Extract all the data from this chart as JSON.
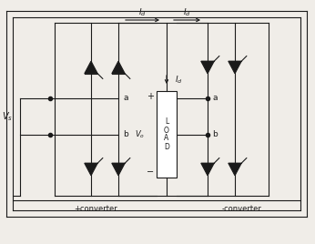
{
  "bg_color": "#f0ede8",
  "line_color": "#1a1a1a",
  "figsize": [
    3.46,
    2.68
  ],
  "dpi": 100,
  "labels": {
    "vs": "$V_s$",
    "vo": "$V_o$",
    "id": "$I_d$",
    "a": "a",
    "b": "b",
    "plus": "+",
    "minus": "-",
    "load": "L\nO\nA\nD",
    "pos_conv": "+converter",
    "neg_conv": "-converter"
  }
}
